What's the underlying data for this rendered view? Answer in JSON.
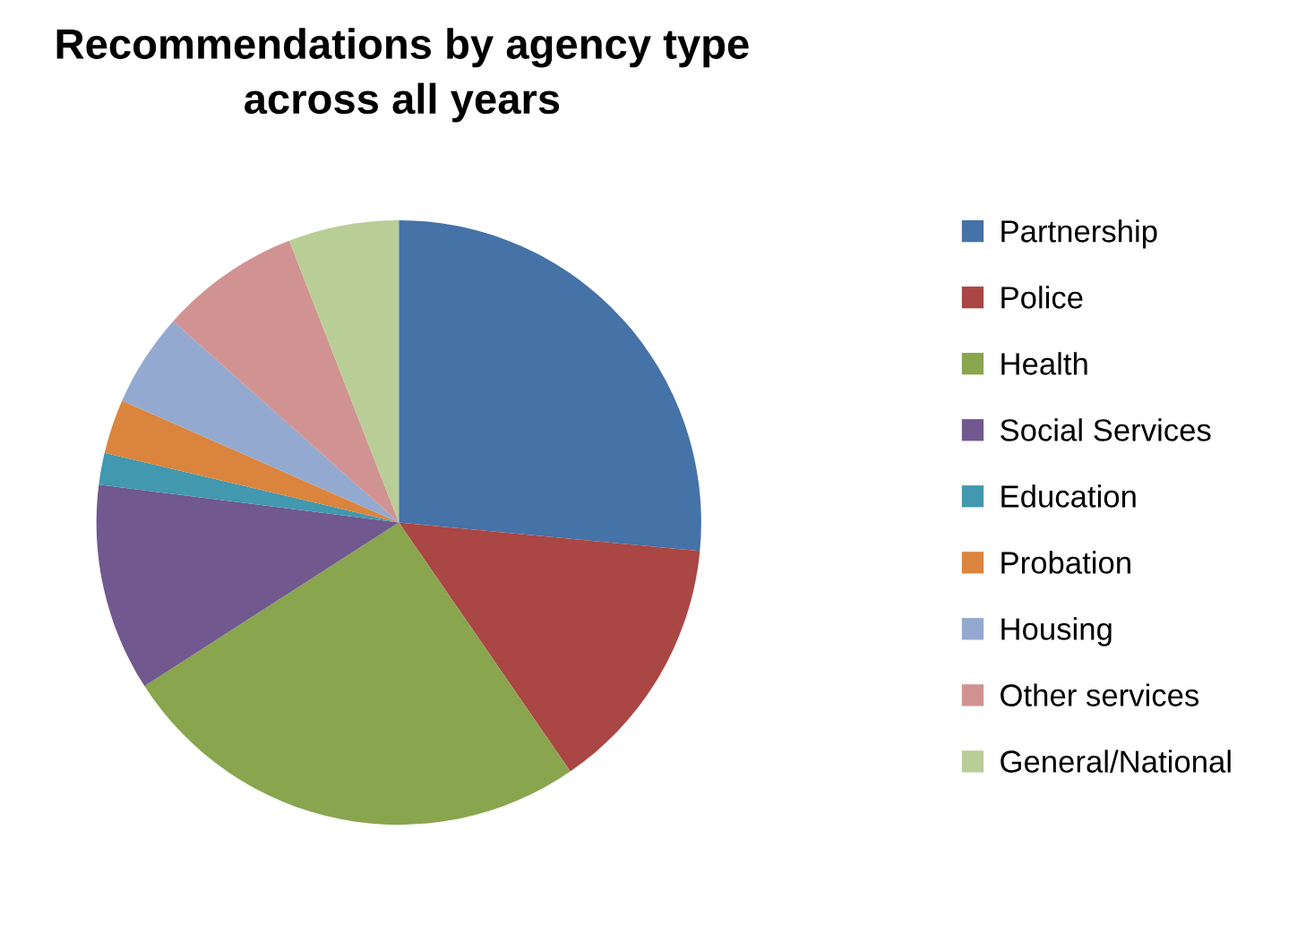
{
  "chart_data": {
    "type": "pie",
    "title": "Recommendations by agency type\nacross all years",
    "categories": [
      "Partnership",
      "Police",
      "Health",
      "Social Services",
      "Education",
      "Probation",
      "Housing",
      "Other services",
      "General/National"
    ],
    "values": [
      26.5,
      13.9,
      25.5,
      11.1,
      1.7,
      2.9,
      5.0,
      7.5,
      5.9
    ],
    "colors": [
      "#4572a7",
      "#aa4643",
      "#89a54e",
      "#71588f",
      "#4198af",
      "#db843d",
      "#93a9cf",
      "#d19392",
      "#b9cd96"
    ],
    "legend": "right"
  }
}
